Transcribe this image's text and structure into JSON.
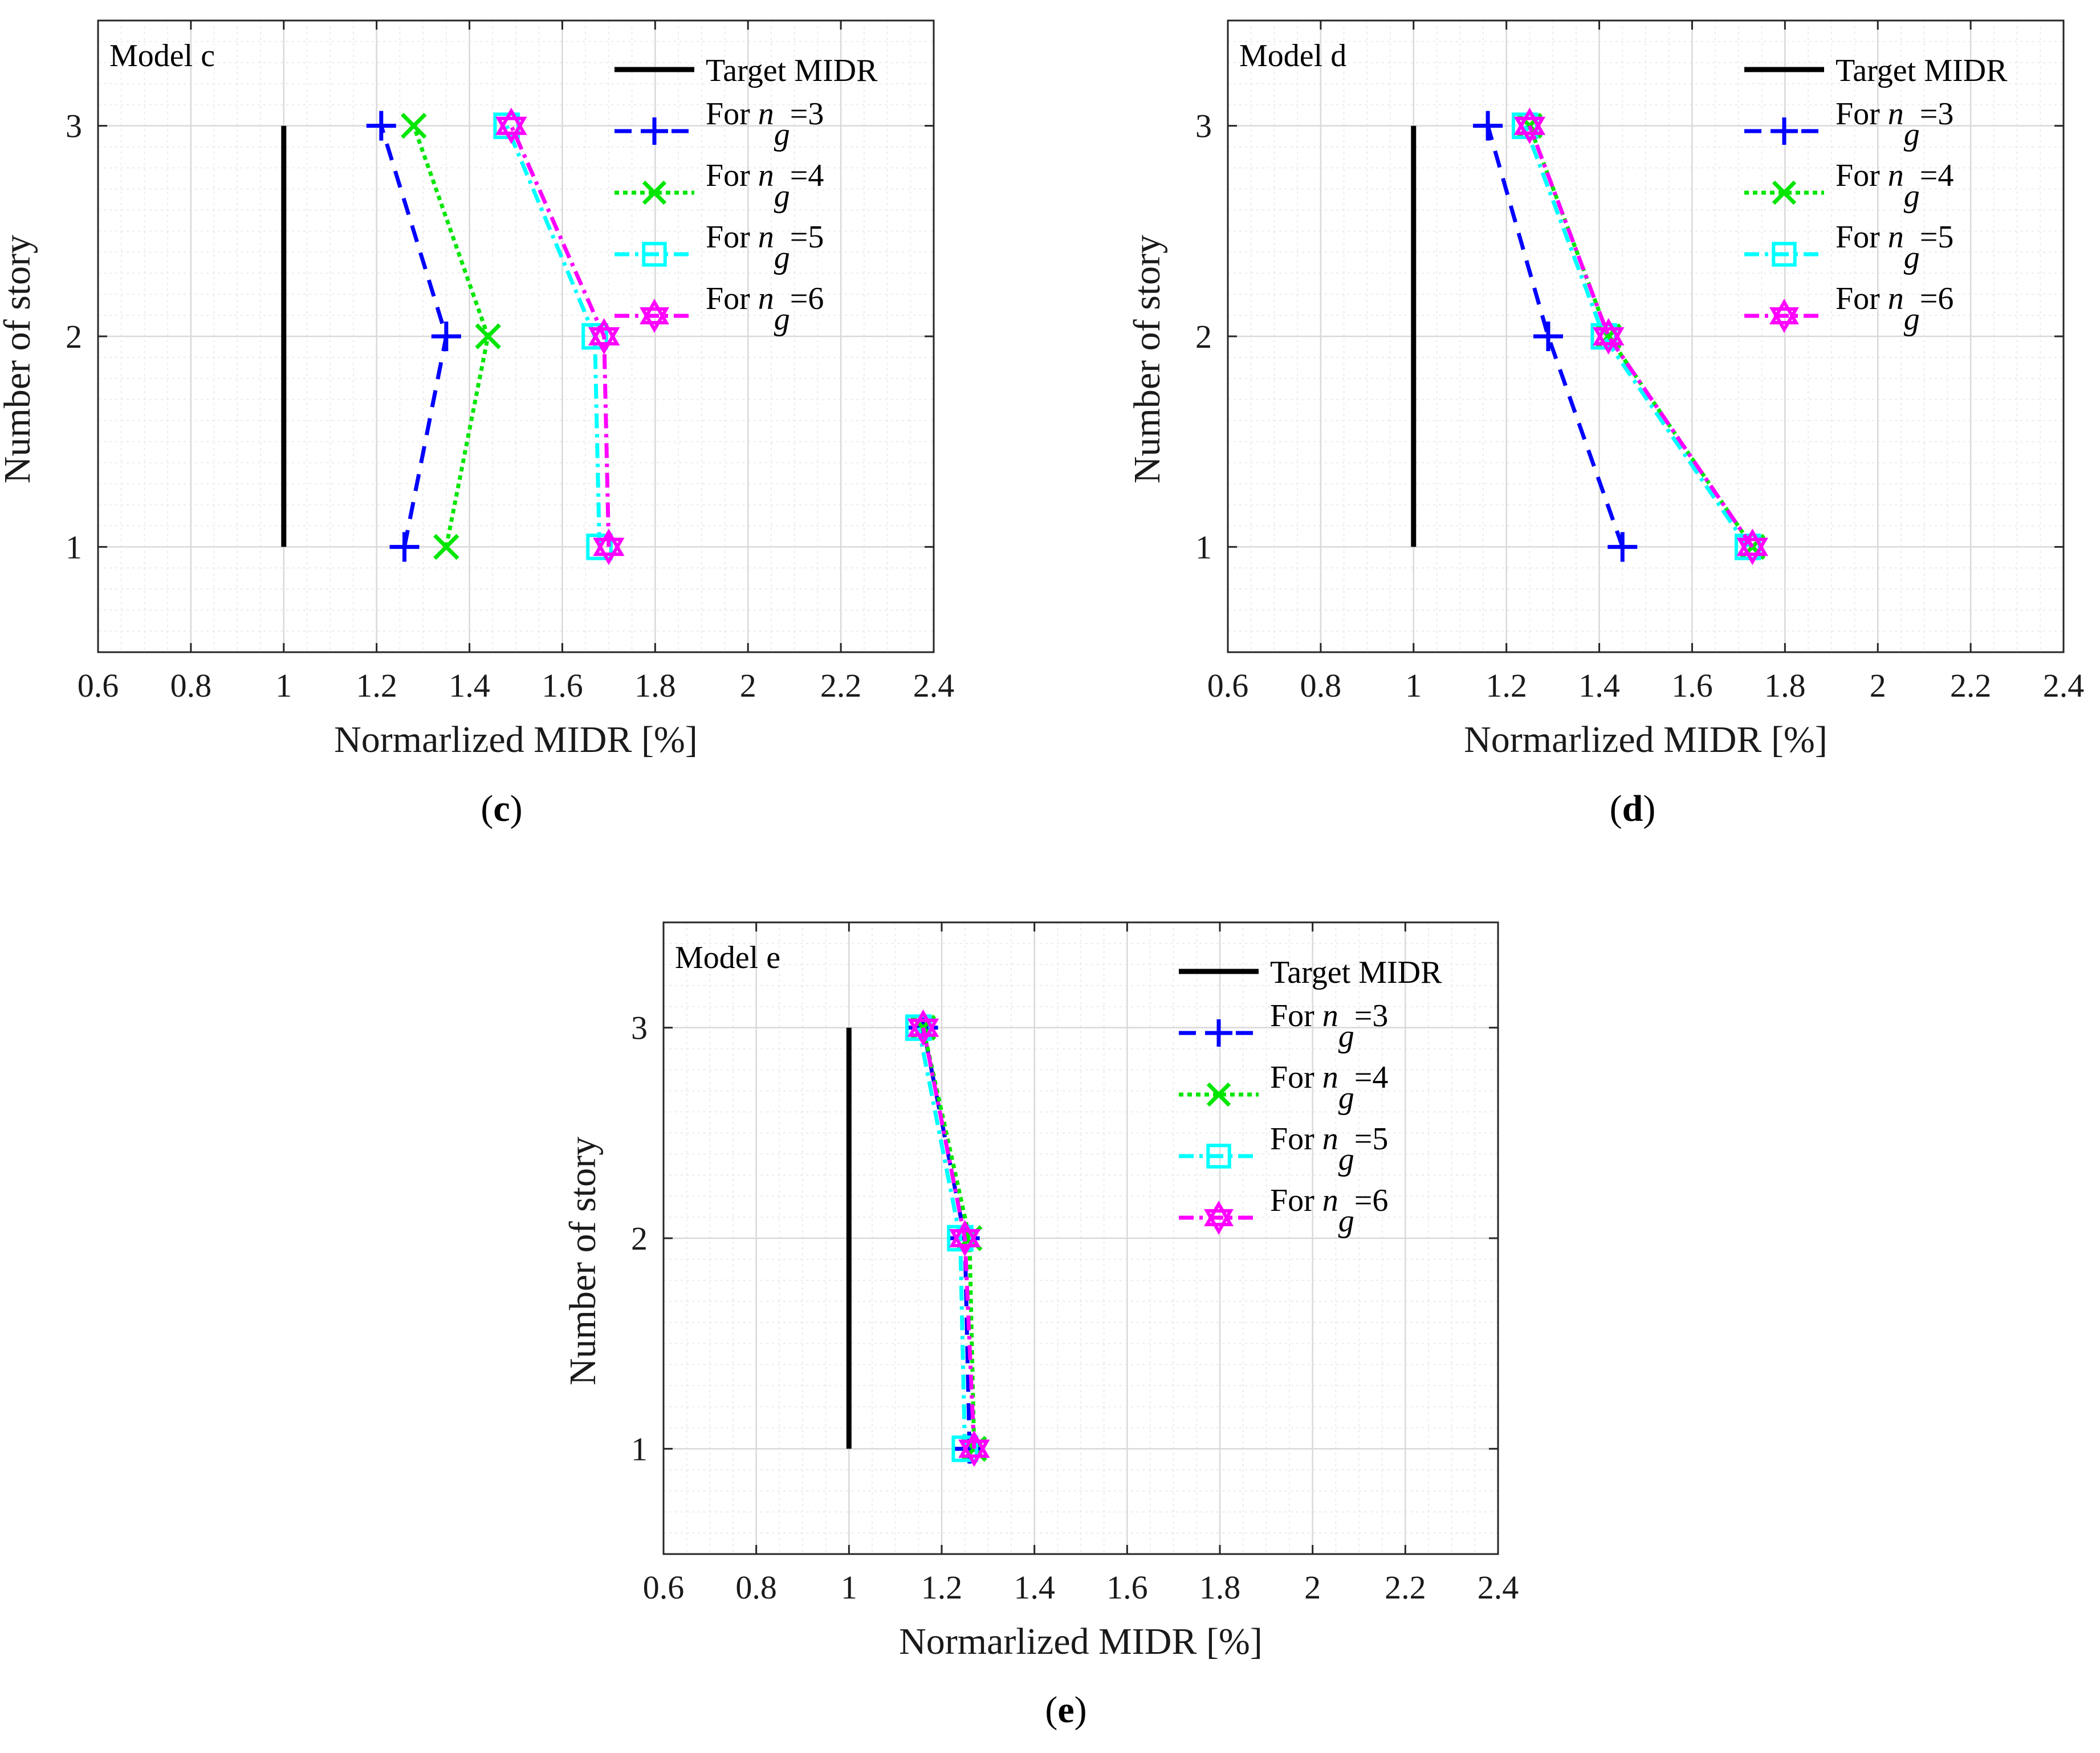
{
  "figure": {
    "x_label": "Normarlized MIDR [%]",
    "y_label": "Number of story"
  },
  "legend": {
    "target": "Target MIDR",
    "prefix": "For ",
    "symbol": "n",
    "subscript": "g"
  },
  "colors": {
    "target": "#000000",
    "ng3": "#0000ff",
    "ng4": "#00e600",
    "ng5": "#00ffff",
    "ng6": "#ff00ff",
    "grid": "#d9d9d9",
    "minor_grid": "#ececec",
    "axis": "#262626"
  },
  "chart_data": [
    {
      "type": "line",
      "panel": "(c)",
      "panel_letter": "c",
      "title": "Model c",
      "xlabel": "Normarlized MIDR [%]",
      "ylabel": "Number of story",
      "xlim": [
        0.6,
        2.4
      ],
      "ylim": [
        0.5,
        3.5
      ],
      "xticks": [
        0.6,
        0.8,
        1,
        1.2,
        1.4,
        1.6,
        1.8,
        2,
        2.2,
        2.4
      ],
      "xtick_labels": [
        "0.6",
        "0.8",
        "1",
        "1.2",
        "1.4",
        "1.6",
        "1.8",
        "2",
        "2.2",
        "2.4"
      ],
      "yticks": [
        1,
        2,
        3
      ],
      "ytick_labels": [
        "1",
        "2",
        "3"
      ],
      "grid": true,
      "legend_position": "top-right",
      "series": [
        {
          "name": "Target MIDR",
          "key": "target",
          "stories": [
            1,
            3
          ],
          "values": [
            1.0,
            1.0
          ]
        },
        {
          "name": "For n_g=3",
          "key": "ng3",
          "ng": "=3",
          "stories": [
            1,
            2,
            3
          ],
          "values": [
            1.26,
            1.35,
            1.21
          ]
        },
        {
          "name": "For n_g=4",
          "key": "ng4",
          "ng": "=4",
          "stories": [
            1,
            2,
            3
          ],
          "values": [
            1.35,
            1.44,
            1.28
          ]
        },
        {
          "name": "For n_g=5",
          "key": "ng5",
          "ng": "=5",
          "stories": [
            1,
            2,
            3
          ],
          "values": [
            1.68,
            1.67,
            1.48
          ]
        },
        {
          "name": "For n_g=6",
          "key": "ng6",
          "ng": "=6",
          "stories": [
            1,
            2,
            3
          ],
          "values": [
            1.7,
            1.69,
            1.49
          ]
        }
      ]
    },
    {
      "type": "line",
      "panel": "(d)",
      "panel_letter": "d",
      "title": "Model d",
      "xlabel": "Normarlized MIDR [%]",
      "ylabel": "Number of story",
      "xlim": [
        0.6,
        2.4
      ],
      "ylim": [
        0.5,
        3.5
      ],
      "xticks": [
        0.6,
        0.8,
        1,
        1.2,
        1.4,
        1.6,
        1.8,
        2,
        2.2,
        2.4
      ],
      "xtick_labels": [
        "0.6",
        "0.8",
        "1",
        "1.2",
        "1.4",
        "1.6",
        "1.8",
        "2",
        "2.2",
        "2.4"
      ],
      "yticks": [
        1,
        2,
        3
      ],
      "ytick_labels": [
        "1",
        "2",
        "3"
      ],
      "grid": true,
      "legend_position": "top-right",
      "series": [
        {
          "name": "Target MIDR",
          "key": "target",
          "stories": [
            1,
            3
          ],
          "values": [
            1.0,
            1.0
          ]
        },
        {
          "name": "For n_g=3",
          "key": "ng3",
          "ng": "=3",
          "stories": [
            1,
            2,
            3
          ],
          "values": [
            1.45,
            1.29,
            1.16
          ]
        },
        {
          "name": "For n_g=4",
          "key": "ng4",
          "ng": "=4",
          "stories": [
            1,
            2,
            3
          ],
          "values": [
            1.73,
            1.42,
            1.25
          ]
        },
        {
          "name": "For n_g=5",
          "key": "ng5",
          "ng": "=5",
          "stories": [
            1,
            2,
            3
          ],
          "values": [
            1.72,
            1.41,
            1.24
          ]
        },
        {
          "name": "For n_g=6",
          "key": "ng6",
          "ng": "=6",
          "stories": [
            1,
            2,
            3
          ],
          "values": [
            1.73,
            1.42,
            1.25
          ]
        }
      ]
    },
    {
      "type": "line",
      "panel": "(e)",
      "panel_letter": "e",
      "title": "Model e",
      "xlabel": "Normarlized MIDR [%]",
      "ylabel": "Number of story",
      "xlim": [
        0.6,
        2.4
      ],
      "ylim": [
        0.5,
        3.5
      ],
      "xticks": [
        0.6,
        0.8,
        1,
        1.2,
        1.4,
        1.6,
        1.8,
        2,
        2.2,
        2.4
      ],
      "xtick_labels": [
        "0.6",
        "0.8",
        "1",
        "1.2",
        "1.4",
        "1.6",
        "1.8",
        "2",
        "2.2",
        "2.4"
      ],
      "yticks": [
        1,
        2,
        3
      ],
      "ytick_labels": [
        "1",
        "2",
        "3"
      ],
      "grid": true,
      "legend_position": "top-right",
      "series": [
        {
          "name": "Target MIDR",
          "key": "target",
          "stories": [
            1,
            3
          ],
          "values": [
            1.0,
            1.0
          ]
        },
        {
          "name": "For n_g=3",
          "key": "ng3",
          "ng": "=3",
          "stories": [
            1,
            2,
            3
          ],
          "values": [
            1.26,
            1.25,
            1.16
          ]
        },
        {
          "name": "For n_g=4",
          "key": "ng4",
          "ng": "=4",
          "stories": [
            1,
            2,
            3
          ],
          "values": [
            1.27,
            1.26,
            1.16
          ]
        },
        {
          "name": "For n_g=5",
          "key": "ng5",
          "ng": "=5",
          "stories": [
            1,
            2,
            3
          ],
          "values": [
            1.25,
            1.24,
            1.15
          ]
        },
        {
          "name": "For n_g=6",
          "key": "ng6",
          "ng": "=6",
          "stories": [
            1,
            2,
            3
          ],
          "values": [
            1.27,
            1.25,
            1.16
          ]
        }
      ]
    }
  ]
}
